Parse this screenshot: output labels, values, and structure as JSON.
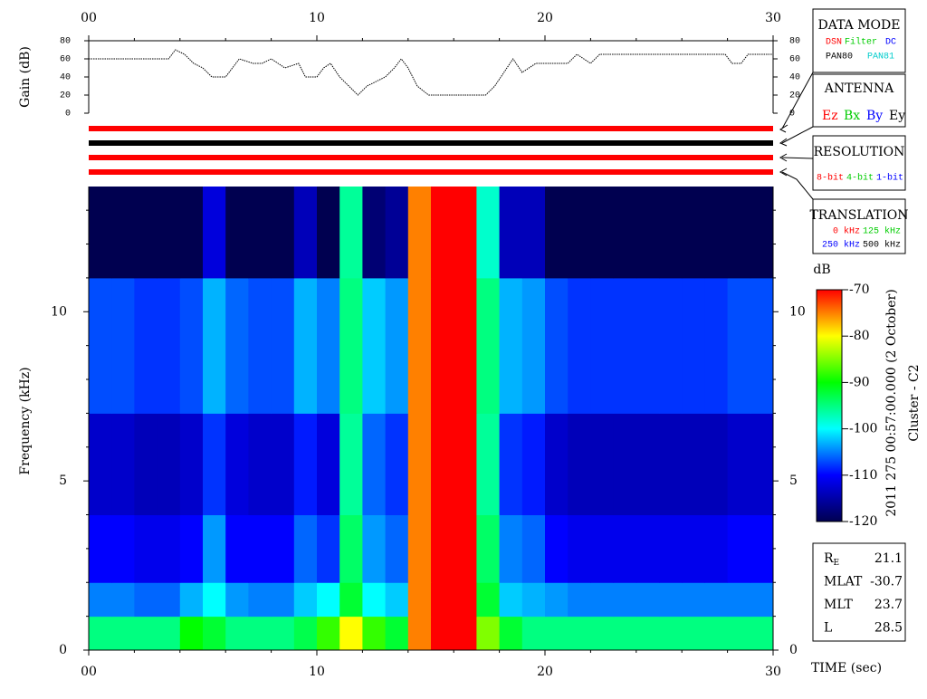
{
  "chart_data": [
    {
      "type": "line",
      "y_label": "Gain (dB)",
      "x": [
        0,
        3.5,
        3.8,
        4.2,
        4.6,
        5.0,
        5.4,
        6.0,
        6.3,
        6.6,
        7.2,
        7.6,
        8.0,
        8.3,
        8.6,
        9.2,
        9.5,
        10.0,
        10.3,
        10.6,
        11.0,
        11.4,
        11.8,
        12.2,
        13.0,
        13.4,
        13.7,
        14.0,
        14.4,
        14.9,
        17.4,
        17.8,
        18.2,
        18.6,
        19.0,
        19.6,
        21.0,
        21.4,
        22.0,
        22.4,
        27.9,
        28.2,
        28.6,
        28.9,
        30
      ],
      "values": [
        60,
        60,
        70,
        65,
        55,
        50,
        40,
        40,
        50,
        60,
        55,
        55,
        60,
        55,
        50,
        55,
        40,
        40,
        50,
        55,
        40,
        30,
        20,
        30,
        40,
        50,
        60,
        50,
        30,
        20,
        20,
        30,
        45,
        60,
        45,
        55,
        55,
        65,
        55,
        65,
        65,
        55,
        55,
        65,
        65
      ],
      "color": "#000000",
      "xlim": [
        0,
        30
      ],
      "xticks": [
        {
          "value": 0,
          "label": "00"
        },
        10,
        20,
        30
      ],
      "xminor": [
        2,
        4,
        6,
        8,
        12,
        14,
        16,
        18,
        22,
        24,
        26,
        28
      ],
      "ylim": [
        0,
        80
      ],
      "yticks": [
        0,
        20,
        40,
        60,
        80
      ]
    },
    {
      "type": "heatmap",
      "x_label": "TIME (sec)",
      "y_label": "Frequency (kHz)",
      "x_bins": [
        0,
        1,
        2,
        3,
        4,
        5,
        6,
        7,
        8,
        9,
        10,
        11,
        12,
        13,
        14,
        15,
        16,
        17,
        18,
        19,
        20,
        21,
        22,
        23,
        24,
        25,
        26,
        27,
        28,
        29,
        30
      ],
      "y_bins": [
        0,
        1,
        2,
        4,
        7,
        11,
        13.7
      ],
      "z": [
        [
          -95,
          -95,
          -95,
          -95,
          -90,
          -92,
          -95,
          -95,
          -95,
          -93,
          -88,
          -80,
          -88,
          -92,
          -75,
          -70,
          -70,
          -85,
          -92,
          -95,
          -95,
          -95,
          -95,
          -95,
          -95,
          -95,
          -95,
          -95,
          -95,
          -95
        ],
        [
          -105,
          -105,
          -106,
          -106,
          -103,
          -100,
          -104,
          -105,
          -105,
          -102,
          -100,
          -92,
          -100,
          -102,
          -75,
          -70,
          -70,
          -92,
          -102,
          -103,
          -104,
          -105,
          -105,
          -105,
          -105,
          -105,
          -105,
          -105,
          -105,
          -105
        ],
        [
          -110,
          -110,
          -111,
          -111,
          -110,
          -104,
          -110,
          -110,
          -110,
          -106,
          -108,
          -94,
          -104,
          -106,
          -75,
          -70,
          -70,
          -94,
          -105,
          -106,
          -110,
          -111,
          -111,
          -111,
          -111,
          -111,
          -111,
          -111,
          -110,
          -110
        ],
        [
          -113,
          -113,
          -114,
          -114,
          -113,
          -108,
          -112,
          -113,
          -113,
          -109,
          -112,
          -96,
          -106,
          -108,
          -75,
          -70,
          -70,
          -96,
          -108,
          -109,
          -113,
          -114,
          -114,
          -114,
          -114,
          -114,
          -114,
          -114,
          -113,
          -113
        ],
        [
          -107,
          -107,
          -108,
          -108,
          -107,
          -103,
          -106,
          -107,
          -107,
          -103,
          -105,
          -95,
          -102,
          -104,
          -75,
          -70,
          -70,
          -95,
          -103,
          -104,
          -107,
          -108,
          -108,
          -108,
          -108,
          -108,
          -108,
          -108,
          -107,
          -107
        ],
        [
          -120,
          -120,
          -120,
          -120,
          -120,
          -112,
          -120,
          -120,
          -120,
          -114,
          -120,
          -96,
          -118,
          -116,
          -75,
          -70,
          -70,
          -98,
          -114,
          -114,
          -120,
          -120,
          -120,
          -120,
          -120,
          -120,
          -120,
          -120,
          -120,
          -120
        ]
      ],
      "xlim": [
        0,
        30
      ],
      "xticks": [
        {
          "value": 0,
          "label": "00"
        },
        10,
        20,
        30
      ],
      "xminor": [
        2,
        4,
        6,
        8,
        12,
        14,
        16,
        18,
        22,
        24,
        26,
        28
      ],
      "ylim": [
        0,
        13.7
      ],
      "yticks": [
        0,
        5,
        10
      ],
      "yminor": [
        1,
        2,
        3,
        4,
        6,
        7,
        8,
        9,
        11,
        12,
        13
      ],
      "colormap": [
        "#000050",
        "#0000ff",
        "#00ffff",
        "#00ff00",
        "#ffff00",
        "#ff0000"
      ],
      "clim": [
        -120,
        -70
      ],
      "cticks": [
        -70,
        -80,
        -90,
        -100,
        -110,
        -120
      ],
      "colorbar_label": "dB",
      "annotations": [
        "2011 275 00:57:00.000 (2 October)",
        "Cluster - C2"
      ]
    }
  ],
  "indicators": {
    "colors": [
      "#ff0000",
      "#000000",
      "#ff0000",
      "#ff0000"
    ]
  },
  "panels": [
    {
      "title": "DATA MODE",
      "items": [
        {
          "text": "DSN",
          "color": "#ff0000"
        },
        {
          "text": "Filter",
          "color": "#00cc00"
        },
        {
          "text": "DC",
          "color": "#0000ff"
        },
        {
          "text": "PAN80",
          "color": "#000000"
        },
        {
          "text": "PAN81",
          "color": "#00cccc"
        }
      ]
    },
    {
      "title": "ANTENNA",
      "items": [
        {
          "text": "Ez",
          "color": "#ff0000"
        },
        {
          "text": "Bx",
          "color": "#00cc00"
        },
        {
          "text": "By",
          "color": "#0000ff"
        },
        {
          "text": "Ey",
          "color": "#000000"
        }
      ]
    },
    {
      "title": "RESOLUTION",
      "items": [
        {
          "text": "8-bit",
          "color": "#ff0000"
        },
        {
          "text": "4-bit",
          "color": "#00cc00"
        },
        {
          "text": "1-bit",
          "color": "#0000ff"
        }
      ]
    },
    {
      "title": "TRANSLATION",
      "items": [
        {
          "text": "0 kHz",
          "color": "#ff0000"
        },
        {
          "text": "125 kHz",
          "color": "#00cc00"
        },
        {
          "text": "250 kHz",
          "color": "#0000ff"
        },
        {
          "text": "500 kHz",
          "color": "#000000"
        }
      ]
    }
  ],
  "info": [
    {
      "label": "R",
      "sub": "E",
      "value": 21.1
    },
    {
      "label": "MLAT",
      "value": -30.7
    },
    {
      "label": "MLT",
      "value": 23.7
    },
    {
      "label": "L",
      "value": 28.5
    }
  ]
}
